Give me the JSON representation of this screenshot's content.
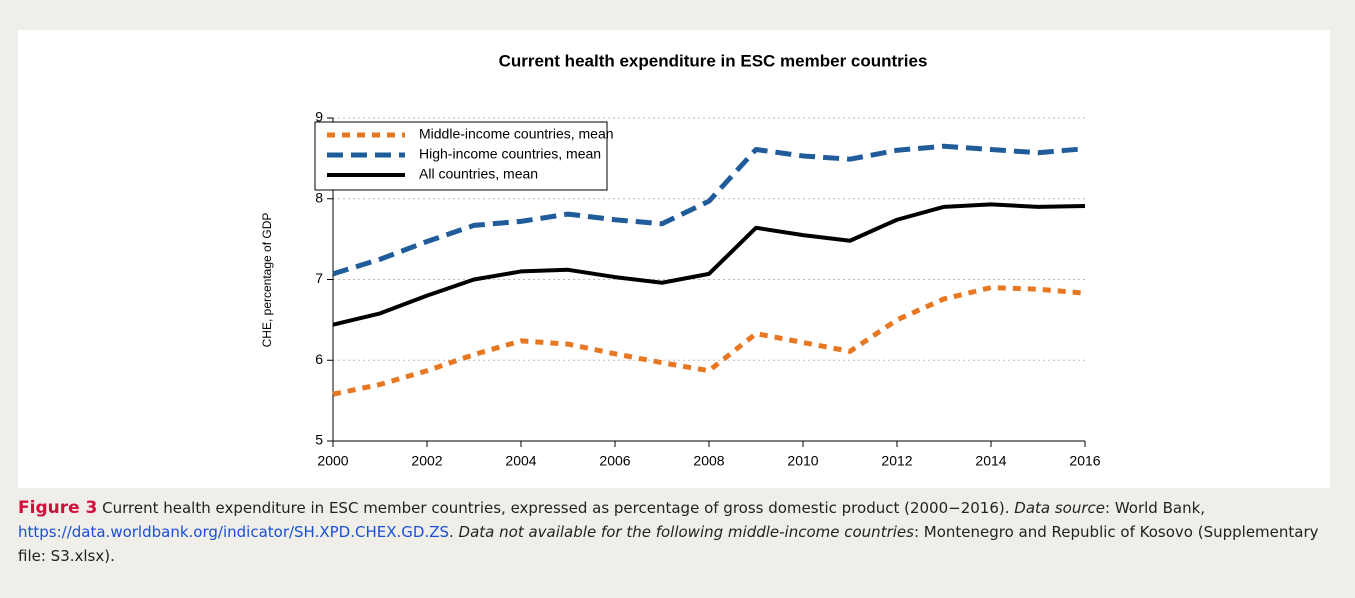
{
  "chart_data": {
    "type": "line",
    "title": "Current health expenditure in ESC member countries",
    "y_label": "CHE, percentage of GDP",
    "x": [
      2000,
      2001,
      2002,
      2003,
      2004,
      2005,
      2006,
      2007,
      2008,
      2009,
      2010,
      2011,
      2012,
      2013,
      2014,
      2015,
      2016
    ],
    "xlim": [
      2000,
      2016
    ],
    "xticks": [
      2000,
      2002,
      2004,
      2006,
      2008,
      2010,
      2012,
      2014,
      2016
    ],
    "ylim": [
      5,
      9
    ],
    "yticks": [
      5,
      6,
      7,
      8,
      9
    ],
    "grid": true,
    "legend": "upper left",
    "series": [
      {
        "name": "Middle-income countries, mean",
        "color": "#e87722",
        "dash": "dotted",
        "values": [
          5.58,
          5.7,
          5.87,
          6.07,
          6.24,
          6.2,
          6.08,
          5.97,
          5.87,
          6.33,
          6.22,
          6.11,
          6.5,
          6.76,
          6.9,
          6.88,
          6.83
        ]
      },
      {
        "name": "High-income countries, mean",
        "color": "#1f5c99",
        "dash": "dashed",
        "values": [
          7.07,
          7.25,
          7.47,
          7.67,
          7.72,
          7.81,
          7.74,
          7.69,
          7.97,
          8.61,
          8.53,
          8.49,
          8.6,
          8.65,
          8.61,
          8.57,
          8.62
        ]
      },
      {
        "name": "All countries, mean",
        "color": "#000000",
        "dash": "solid",
        "values": [
          6.44,
          6.58,
          6.8,
          7.0,
          7.1,
          7.12,
          7.03,
          6.96,
          7.07,
          7.64,
          7.55,
          7.48,
          7.74,
          7.9,
          7.93,
          7.9,
          7.91
        ]
      }
    ]
  },
  "caption": {
    "label": "Figure 3",
    "parts": [
      {
        "text": " Current health expenditure in ESC member countries, expressed as percentage of gross domestic product (2000−2016). ",
        "style": "plain"
      },
      {
        "text": "Data source",
        "style": "italic"
      },
      {
        "text": ": World Bank, ",
        "style": "plain"
      },
      {
        "text": "https://data.worldbank.org/indicator/SH.XPD.CHEX.GD.ZS",
        "style": "link"
      },
      {
        "text": ". ",
        "style": "plain"
      },
      {
        "text": "Data not available for the following middle-income countries",
        "style": "italic"
      },
      {
        "text": ": Montenegro and Republic of Kosovo (Supplementary file: S3.xlsx).",
        "style": "plain"
      }
    ]
  }
}
